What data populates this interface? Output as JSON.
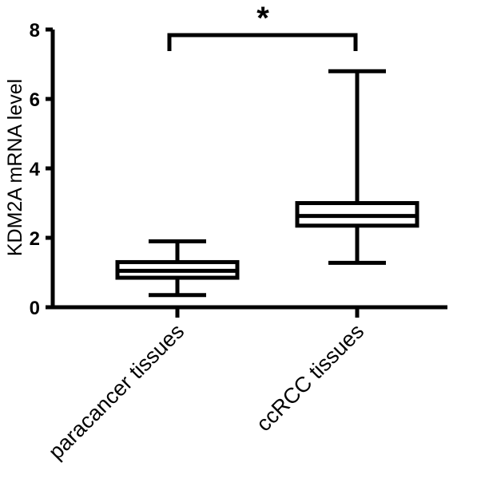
{
  "chart_data": {
    "type": "box",
    "title": "",
    "xlabel": "",
    "ylabel": "KDM2A mRNA level",
    "ylim": [
      0,
      8
    ],
    "yticks": [
      0,
      2,
      4,
      6,
      8
    ],
    "ytick_labels": [
      "0",
      "2",
      "4",
      "6",
      "8"
    ],
    "categories": [
      "paracancer tissues",
      "ccRCC tissues"
    ],
    "boxes": [
      {
        "category": "paracancer tissues",
        "min": 0.35,
        "q1": 0.85,
        "median": 1.05,
        "q3": 1.3,
        "max": 1.9
      },
      {
        "category": "ccRCC tissues",
        "min": 1.28,
        "q1": 2.35,
        "median": 2.63,
        "q3": 3.0,
        "max": 6.8
      }
    ],
    "annotation": {
      "text": "*",
      "between": [
        "paracancer tissues",
        "ccRCC tissues"
      ]
    },
    "grid": false,
    "colors": {
      "line": "#000000",
      "box_fill": "#ffffff",
      "background": "#ffffff"
    }
  }
}
